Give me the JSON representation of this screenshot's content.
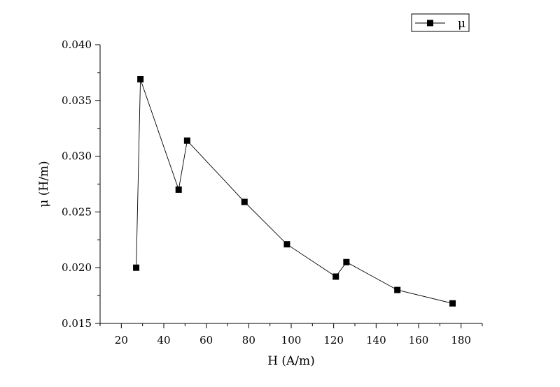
{
  "chart_data": {
    "type": "line",
    "title": "",
    "xlabel": "H  (A/m)",
    "ylabel": "μ  (H/m)",
    "xlim": [
      10,
      190
    ],
    "ylim": [
      0.015,
      0.04
    ],
    "xticks": [
      20,
      40,
      60,
      80,
      100,
      120,
      140,
      160,
      180
    ],
    "yticks": [
      0.015,
      0.02,
      0.025,
      0.03,
      0.035,
      0.04
    ],
    "xtick_labels": [
      "20",
      "40",
      "60",
      "80",
      "100",
      "120",
      "140",
      "160",
      "180"
    ],
    "ytick_labels": [
      "0.015",
      "0.020",
      "0.025",
      "0.030",
      "0.035",
      "0.040"
    ],
    "grid": false,
    "legend": {
      "position": "top-right",
      "entries": [
        "μ"
      ]
    },
    "series": [
      {
        "name": "μ",
        "color": "#000000",
        "marker": "square",
        "x": [
          27,
          29,
          47,
          51,
          78,
          98,
          121,
          126,
          150,
          176
        ],
        "y": [
          0.02,
          0.0369,
          0.027,
          0.0314,
          0.0259,
          0.0221,
          0.0192,
          0.0205,
          0.018,
          0.0168
        ]
      }
    ]
  }
}
